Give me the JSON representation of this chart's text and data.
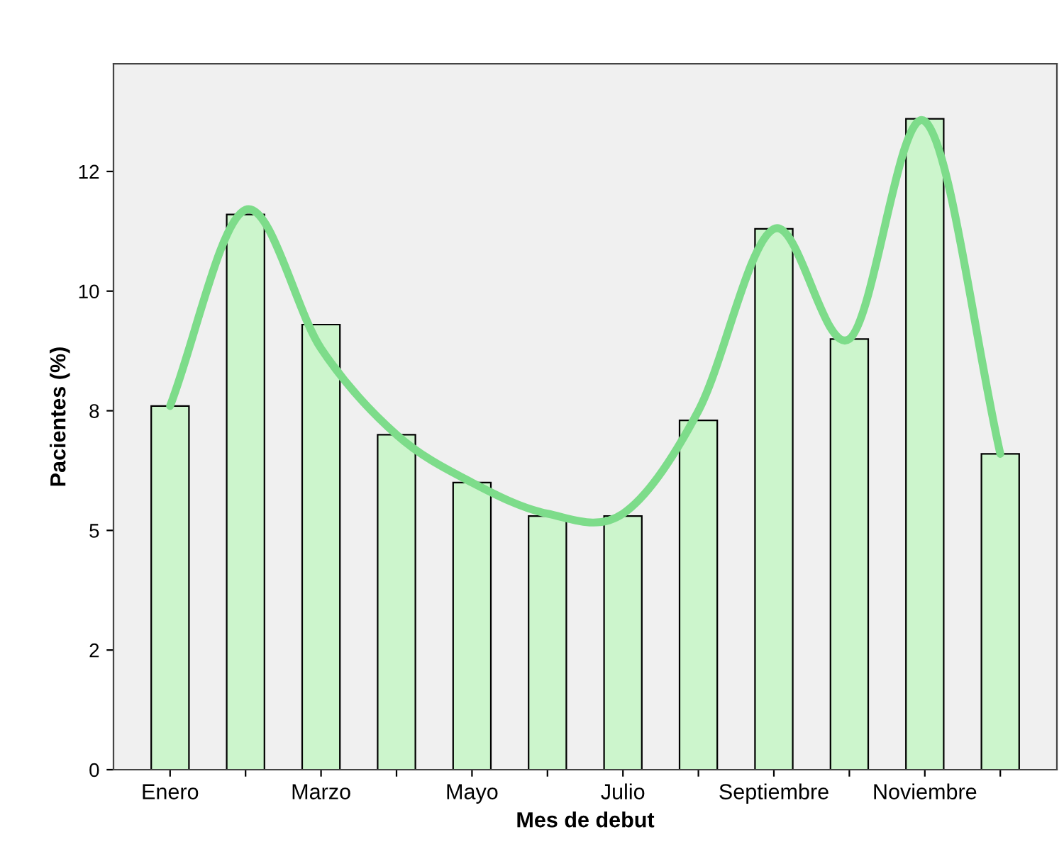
{
  "chart_data": {
    "type": "bar",
    "xlabel": "Mes de debut",
    "ylabel": "Pacientes (%)",
    "categories": [
      "Enero",
      null,
      "Marzo",
      null,
      "Mayo",
      null,
      "Julio",
      null,
      "Septiembre",
      null,
      "Noviembre",
      null
    ],
    "series": [
      {
        "color": "#ccf5cc",
        "values": [
          7.6,
          11.6,
          9.3,
          7.0,
          6.0,
          5.3,
          5.3,
          7.3,
          11.3,
          9.0,
          13.6,
          6.6
        ]
      },
      {
        "type": "line",
        "color": "#7ddc8a",
        "values": [
          7.6,
          11.7,
          8.8,
          7.0,
          6.0,
          5.35,
          5.35,
          7.5,
          11.3,
          9.0,
          13.55,
          6.6
        ]
      }
    ],
    "ylim": [
      0,
      14.75
    ],
    "yticks": [
      0,
      {
        "value": 2.5,
        "label": "2"
      },
      5,
      {
        "value": 7.5,
        "label": "8"
      },
      10,
      {
        "value": 12.5,
        "label": "12"
      }
    ],
    "grid": false,
    "legend": false
  }
}
